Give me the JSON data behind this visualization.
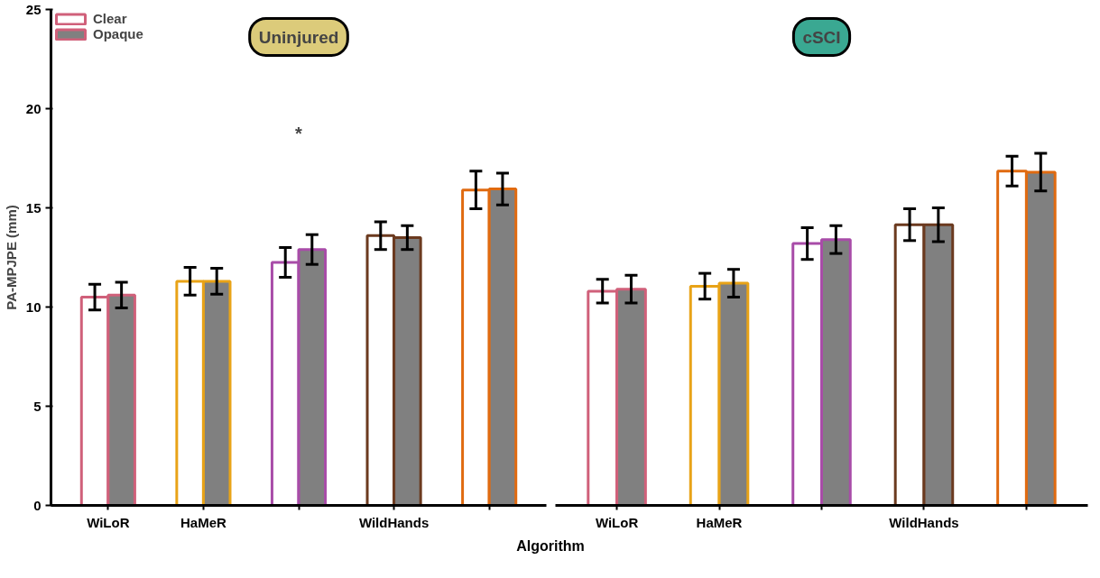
{
  "chart_data": [
    {
      "type": "bar",
      "title": "Uninjured",
      "ylabel": "PA-MPJPE (mm)",
      "xlabel": "Algorithm",
      "categories": [
        "WiLoR",
        "HaMeR",
        null,
        "WildHands",
        null
      ],
      "series": [
        {
          "name": "Clear",
          "color": "#ffffff",
          "colors": [
            "#d0607a",
            "#e8a317",
            "#a84ca8",
            "#6b3a1f",
            "#e06a10"
          ],
          "values": [
            10.5,
            11.3,
            12.25,
            13.6,
            15.9
          ],
          "errors": [
            0.65,
            0.7,
            0.75,
            0.7,
            0.95
          ]
        },
        {
          "name": "Opaque",
          "color": "#808080",
          "colors": [
            "#d0607a",
            "#e8a317",
            "#a84ca8",
            "#6b3a1f",
            "#e06a10"
          ],
          "values": [
            10.6,
            11.3,
            12.9,
            13.5,
            15.95
          ],
          "errors": [
            0.65,
            0.65,
            0.75,
            0.6,
            0.8
          ]
        }
      ],
      "annotations": [
        "*"
      ],
      "ylim": [
        0,
        25
      ],
      "yticks": [
        0,
        5,
        10,
        15,
        20,
        25
      ],
      "grid": false,
      "legend": "top left"
    },
    {
      "type": "bar",
      "title": "cSCI",
      "categories": [
        "WiLoR",
        "HaMeR",
        null,
        "WildHands",
        null
      ],
      "series": [
        {
          "color": "#ffffff",
          "colors": [
            "#d0607a",
            "#e8a317",
            "#a84ca8",
            "#6b3a1f",
            "#e06a10"
          ],
          "values": [
            10.8,
            11.05,
            13.2,
            14.15,
            16.85
          ],
          "errors": [
            0.6,
            0.65,
            0.8,
            0.8,
            0.75
          ]
        },
        {
          "color": "#808080",
          "colors": [
            "#d0607a",
            "#e8a317",
            "#a84ca8",
            "#6b3a1f",
            "#e06a10"
          ],
          "values": [
            10.9,
            11.2,
            13.4,
            14.15,
            16.8
          ],
          "errors": [
            0.7,
            0.7,
            0.7,
            0.85,
            0.95
          ]
        }
      ],
      "ylim": [
        0,
        25
      ],
      "grid": false,
      "tick_labels": "x"
    }
  ]
}
